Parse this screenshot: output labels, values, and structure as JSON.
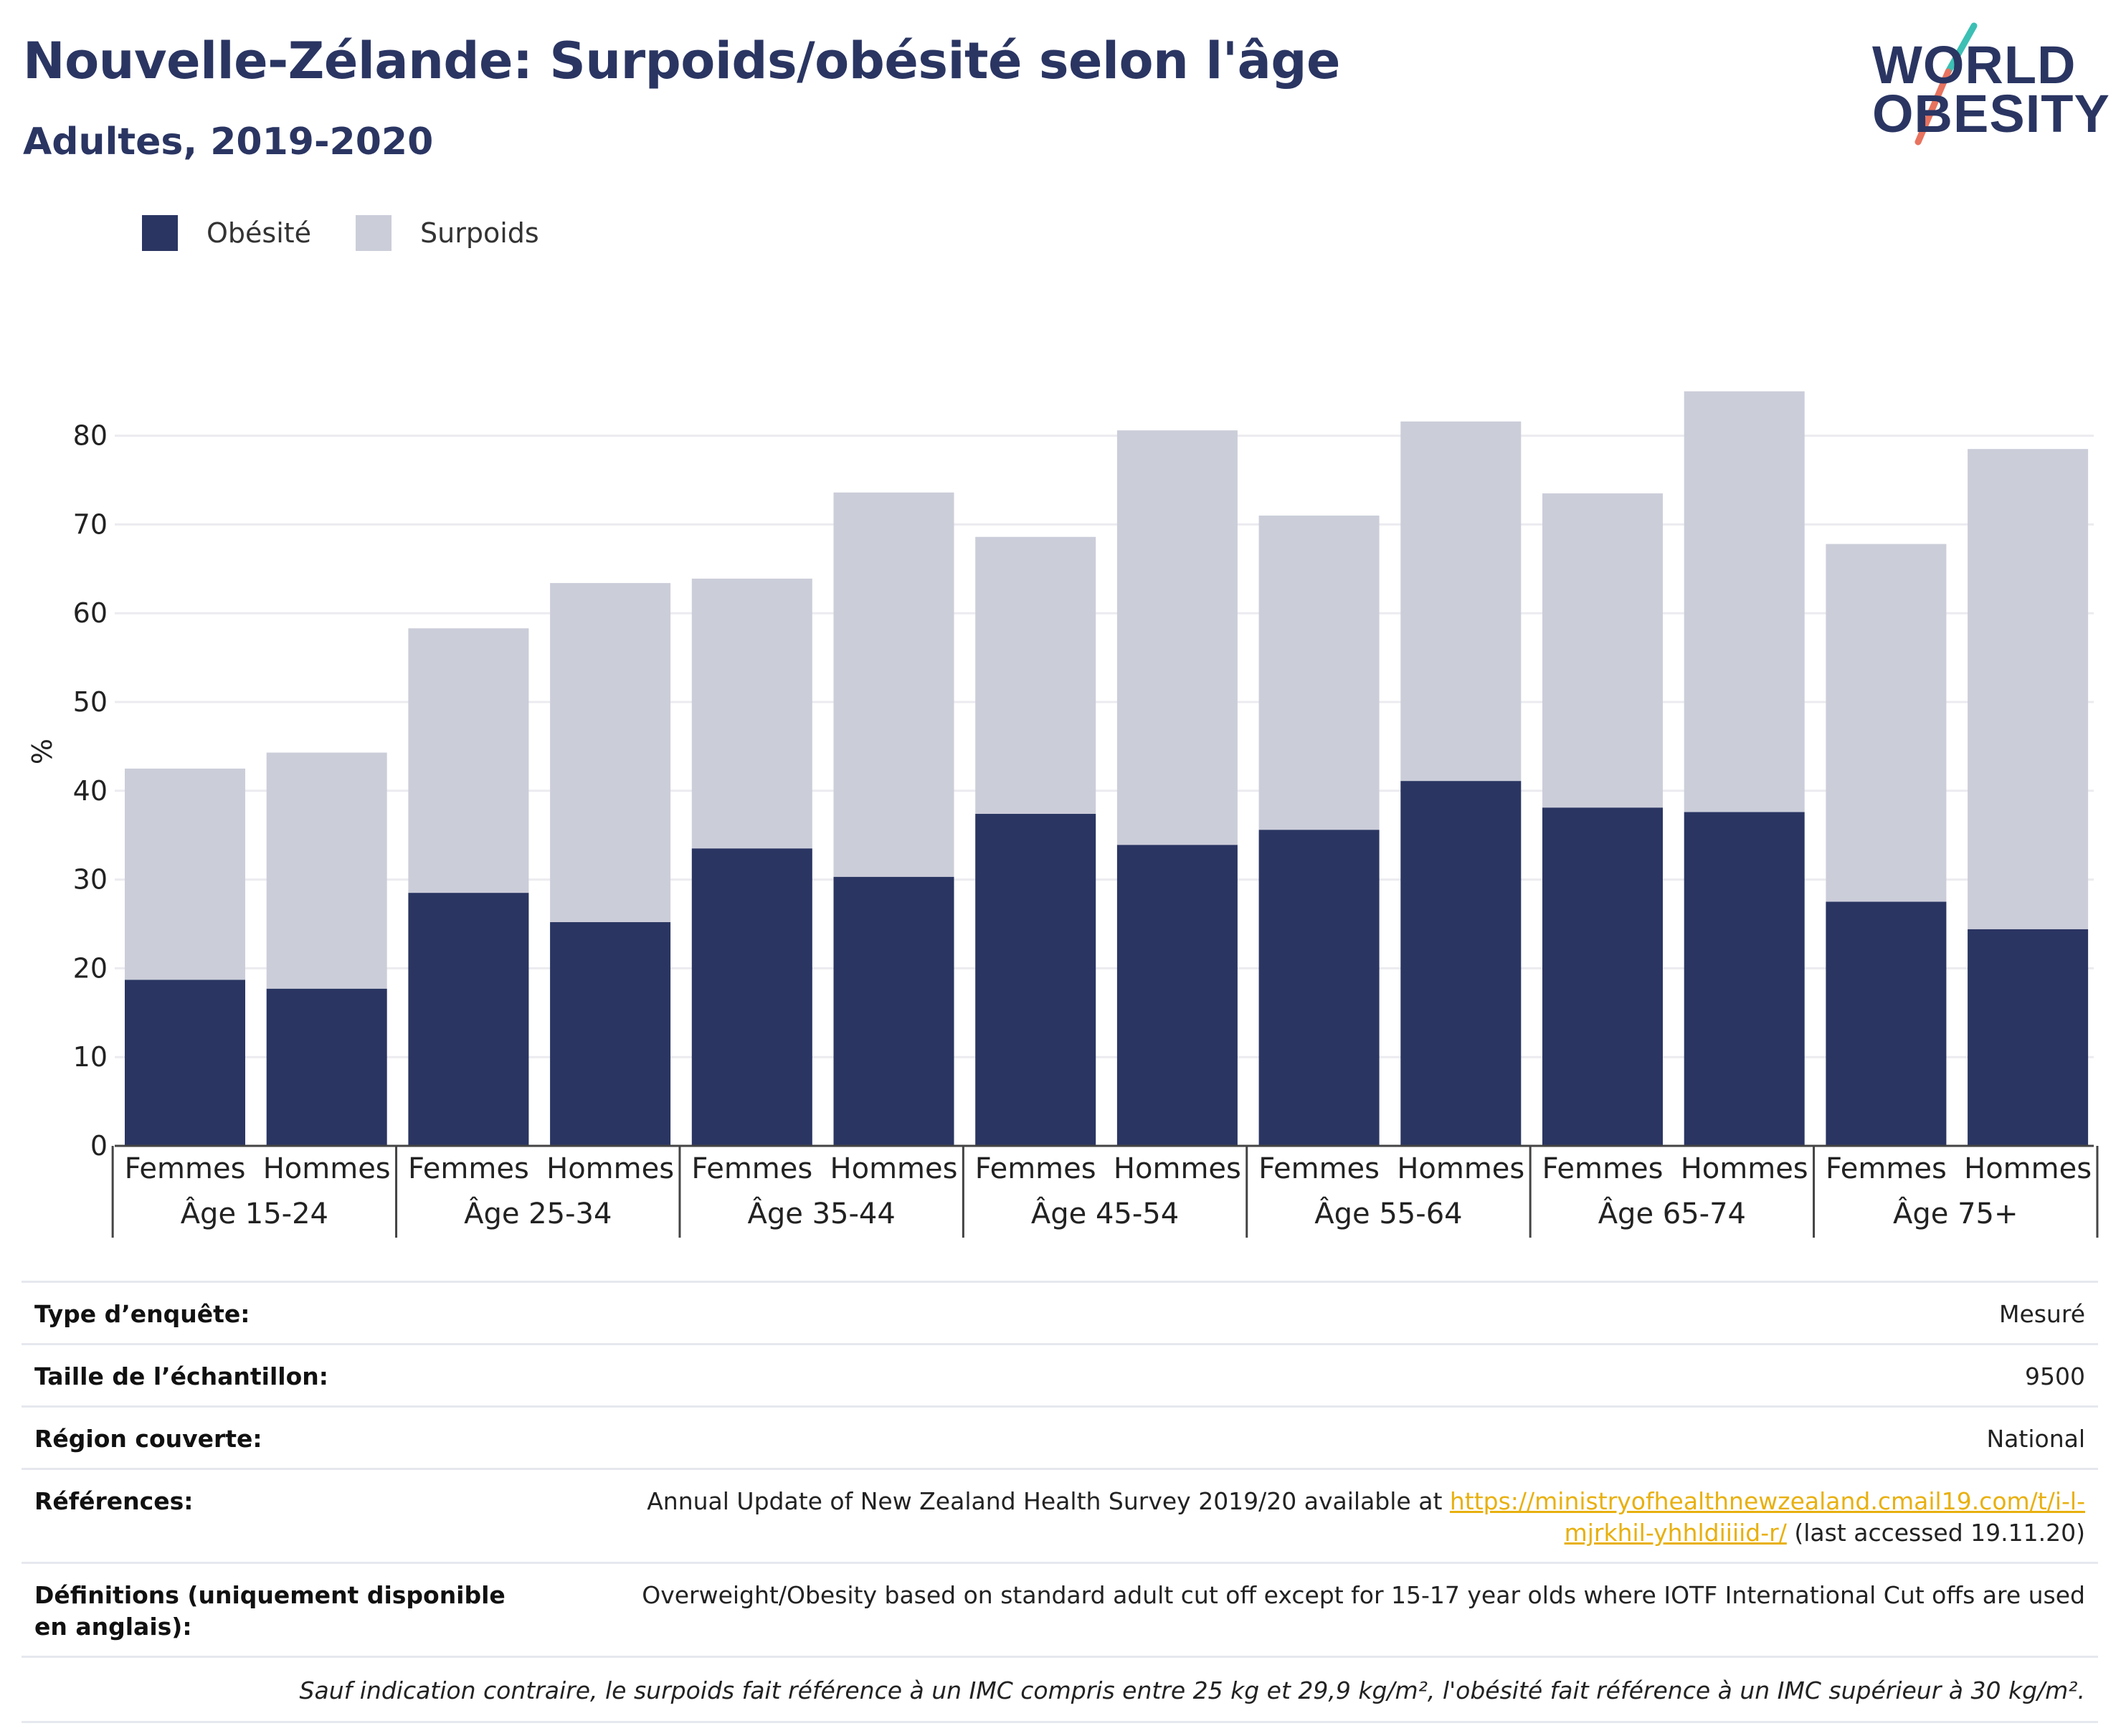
{
  "header": {
    "title": "Nouvelle-Zélande: Surpoids/obésité selon l'âge",
    "subtitle": "Adultes, 2019-2020"
  },
  "logo": {
    "line1": "WORLD",
    "line2": "OBESITY"
  },
  "colors": {
    "obesite": "#2a3562",
    "surpoids": "#cbcdd9",
    "accent_teal": "#3cbfb4",
    "accent_coral": "#e8735f"
  },
  "chart_data": {
    "type": "bar",
    "stacked": true,
    "ylabel": "%",
    "ylim": [
      0,
      86
    ],
    "yticks": [
      0,
      10,
      20,
      30,
      40,
      50,
      60,
      70,
      80
    ],
    "legend": {
      "position": "top-left"
    },
    "groups": [
      {
        "label": "Âge 15-24",
        "categories": [
          "Femmes",
          "Hommes"
        ]
      },
      {
        "label": "Âge 25-34",
        "categories": [
          "Femmes",
          "Hommes"
        ]
      },
      {
        "label": "Âge 35-44",
        "categories": [
          "Femmes",
          "Hommes"
        ]
      },
      {
        "label": "Âge 45-54",
        "categories": [
          "Femmes",
          "Hommes"
        ]
      },
      {
        "label": "Âge 55-64",
        "categories": [
          "Femmes",
          "Hommes"
        ]
      },
      {
        "label": "Âge 65-74",
        "categories": [
          "Femmes",
          "Hommes"
        ]
      },
      {
        "label": "Âge 75+",
        "categories": [
          "Femmes",
          "Hommes"
        ]
      }
    ],
    "series": [
      {
        "name": "Obésité",
        "values": [
          18.7,
          17.7,
          28.5,
          25.2,
          33.5,
          30.3,
          37.4,
          33.9,
          35.6,
          41.1,
          38.1,
          37.6,
          27.5,
          24.4
        ]
      },
      {
        "name": "Surpoids",
        "values": [
          23.8,
          26.6,
          29.8,
          38.2,
          30.4,
          43.3,
          31.2,
          46.7,
          35.4,
          40.5,
          35.4,
          47.4,
          40.3,
          54.1
        ]
      }
    ]
  },
  "info": [
    {
      "label": "Type d’enquête:",
      "value": "Mesuré"
    },
    {
      "label": "Taille de l’échantillon:",
      "value": "9500"
    },
    {
      "label": "Région couverte:",
      "value": "National"
    }
  ],
  "references": {
    "label": "Références:",
    "text_before": "Annual Update of New Zealand Health Survey 2019/20 available at ",
    "link": "https://ministryofhealthnewzealand.cmail19.com/t/i-l-mjrkhil-yhhldiiiid-r/",
    "text_after": " (last accessed 19.11.20)"
  },
  "definitions": {
    "label": "Définitions (uniquement disponible en anglais):",
    "value": "Overweight/Obesity based on standard adult cut off except for 15-17 year olds where IOTF International Cut offs are used"
  },
  "footnote": "Sauf indication contraire, le surpoids fait référence à un IMC compris entre 25 kg et 29,9 kg/m², l'obésité fait référence à un IMC supérieur à 30 kg/m²."
}
